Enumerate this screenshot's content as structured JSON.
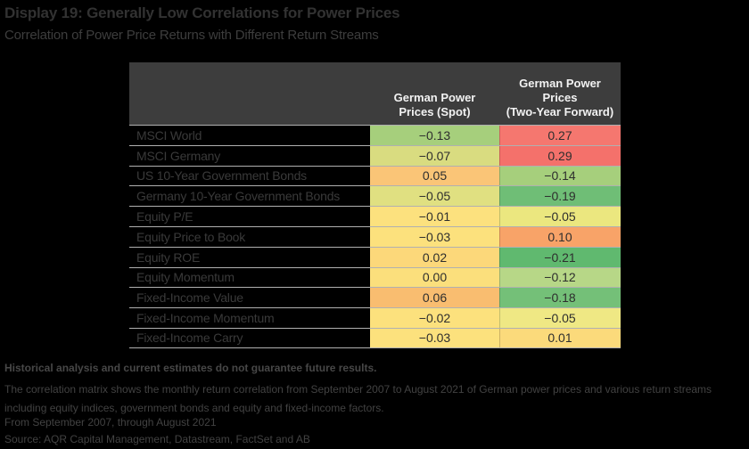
{
  "title": "Display 19: Generally Low Correlations for Power Prices",
  "subtitle": "Correlation of Power Price Returns with Different Return Streams",
  "table": {
    "columns": [
      {
        "label": "German Power\nPrices (Spot)"
      },
      {
        "label": "German Power\nPrices\n(Two-Year Forward)"
      }
    ],
    "rows": [
      {
        "label": "MSCI World",
        "spot": {
          "text": "−0.13",
          "color": "#a6cf7c"
        },
        "fwd": {
          "text": "0.27",
          "color": "#f5776f"
        }
      },
      {
        "label": "MSCI Germany",
        "spot": {
          "text": "−0.07",
          "color": "#d9dc80"
        },
        "fwd": {
          "text": "0.29",
          "color": "#f4716b"
        }
      },
      {
        "label": "US 10-Year Government Bonds",
        "spot": {
          "text": "0.05",
          "color": "#fac577"
        },
        "fwd": {
          "text": "−0.14",
          "color": "#a6cf7c"
        }
      },
      {
        "label": "Germany 10-Year Government Bonds",
        "spot": {
          "text": "−0.05",
          "color": "#e0e081"
        },
        "fwd": {
          "text": "−0.19",
          "color": "#6fbe76"
        }
      },
      {
        "label": "Equity P/E",
        "spot": {
          "text": "−0.01",
          "color": "#fce17e"
        },
        "fwd": {
          "text": "−0.05",
          "color": "#ebe77f"
        }
      },
      {
        "label": "Equity Price to Book",
        "spot": {
          "text": "−0.03",
          "color": "#fce17d"
        },
        "fwd": {
          "text": "0.10",
          "color": "#f8a368"
        }
      },
      {
        "label": "Equity ROE",
        "spot": {
          "text": "0.02",
          "color": "#fcd87a"
        },
        "fwd": {
          "text": "−0.21",
          "color": "#60b96f"
        }
      },
      {
        "label": "Equity Momentum",
        "spot": {
          "text": "0.00",
          "color": "#fbdf7c"
        },
        "fwd": {
          "text": "−0.12",
          "color": "#b7d787"
        }
      },
      {
        "label": "Fixed-Income Value",
        "spot": {
          "text": "0.06",
          "color": "#f9bd70"
        },
        "fwd": {
          "text": "−0.18",
          "color": "#74c078"
        }
      },
      {
        "label": "Fixed-Income Momentum",
        "spot": {
          "text": "−0.02",
          "color": "#fce17d"
        },
        "fwd": {
          "text": "−0.05",
          "color": "#efe884"
        }
      },
      {
        "label": "Fixed-Income Carry",
        "spot": {
          "text": "−0.03",
          "color": "#fce17d"
        },
        "fwd": {
          "text": "0.01",
          "color": "#fbda7b"
        }
      }
    ],
    "header_bg": "#3d3d3d",
    "row_border_color": "#b0b0b0"
  },
  "footnotes": {
    "disclaimer": "Historical analysis and current estimates do not guarantee future results.",
    "note": "The correlation matrix shows the monthly return correlation from September 2007 to August 2021 of German power prices and various return streams including equity indices, government bonds and equity and fixed-income factors.",
    "period": "From September 2007, through August 2021",
    "source": "Source: AQR Capital Management, Datastream, FactSet and AB"
  },
  "chart_data": {
    "type": "heatmap",
    "title": "Display 19: Generally Low Correlations for Power Prices",
    "subtitle": "Correlation of Power Price Returns with Different Return Streams",
    "columns": [
      "German Power Prices (Spot)",
      "German Power Prices (Two-Year Forward)"
    ],
    "rows": [
      "MSCI World",
      "MSCI Germany",
      "US 10-Year Government Bonds",
      "Germany 10-Year Government Bonds",
      "Equity P/E",
      "Equity Price to Book",
      "Equity ROE",
      "Equity Momentum",
      "Fixed-Income Value",
      "Fixed-Income Momentum",
      "Fixed-Income Carry"
    ],
    "values": [
      [
        -0.13,
        0.27
      ],
      [
        -0.07,
        0.29
      ],
      [
        0.05,
        -0.14
      ],
      [
        -0.05,
        -0.19
      ],
      [
        -0.01,
        -0.05
      ],
      [
        -0.03,
        0.1
      ],
      [
        0.02,
        -0.21
      ],
      [
        0.0,
        -0.12
      ],
      [
        0.06,
        -0.18
      ],
      [
        -0.02,
        -0.05
      ],
      [
        -0.03,
        0.01
      ]
    ],
    "colormap": "diverging red-yellow-green: positive correlations shade toward red/orange, values near zero are yellow, negative correlations shade toward green",
    "legend_position": "none",
    "grid": "row separator lines only"
  }
}
